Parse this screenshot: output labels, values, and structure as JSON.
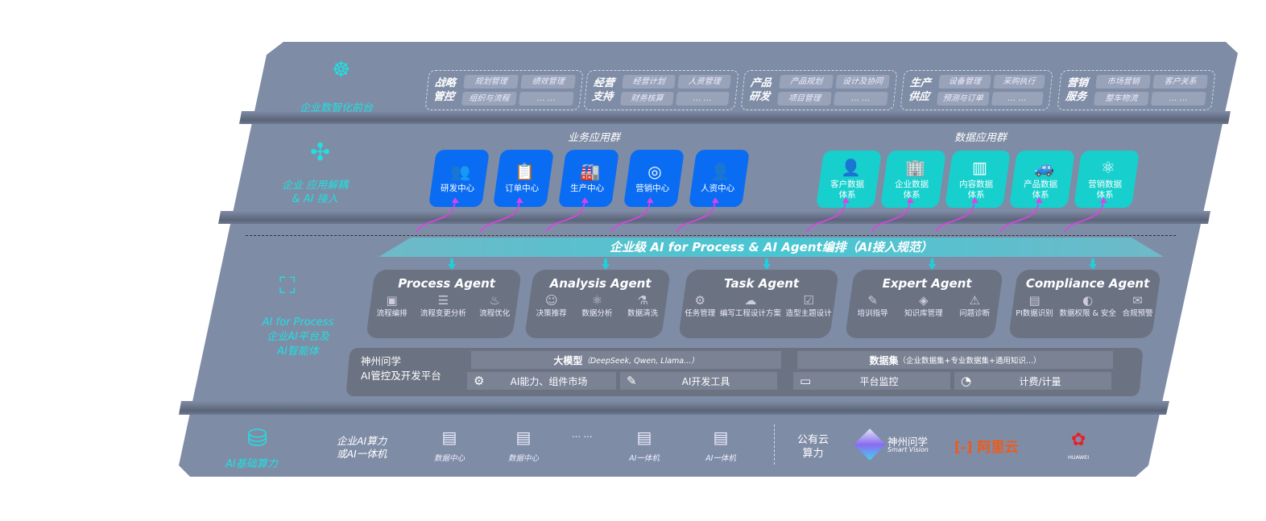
{
  "colors": {
    "panel": "#7f8ca6",
    "accent_teal": "#1fe0e0",
    "business_blue": "#0a6cf2",
    "data_cyan": "#17cfcd",
    "arrow_magenta": "#e040e8"
  },
  "layer1": {
    "label": "企业数智化前台",
    "icon": "brain-icon",
    "groups": [
      {
        "title": [
          "战略",
          "管控"
        ],
        "items": [
          "规划管理",
          "绩效管理",
          "组织与流程",
          "… …"
        ]
      },
      {
        "title": [
          "经营",
          "支持"
        ],
        "items": [
          "经营计划",
          "人资管理",
          "财务核算",
          "… …"
        ]
      },
      {
        "title": [
          "产品",
          "研发"
        ],
        "items": [
          "产品规划",
          "设计及协同",
          "项目管理",
          "… …"
        ]
      },
      {
        "title": [
          "生产",
          "供应"
        ],
        "items": [
          "设备管理",
          "采购执行",
          "预测与订单",
          "… …"
        ]
      },
      {
        "title": [
          "营销",
          "服务"
        ],
        "items": [
          "市场营销",
          "客户关系",
          "整车物流",
          "… …"
        ]
      }
    ]
  },
  "layer2": {
    "label": [
      "企业 应用解耦",
      "& AI 接入"
    ],
    "icon": "molecule-icon",
    "business_title": "业务应用群",
    "business": [
      {
        "label": "研发中心",
        "icon": "team-icon",
        "glyph": "👥"
      },
      {
        "label": "订单中心",
        "icon": "clipboard-icon",
        "glyph": "📋"
      },
      {
        "label": "生产中心",
        "icon": "factory-icon",
        "glyph": "🏭"
      },
      {
        "label": "营销中心",
        "icon": "target-icon",
        "glyph": "◎"
      },
      {
        "label": "人资中心",
        "icon": "person-icon",
        "glyph": "👤"
      }
    ],
    "data_title": "数据应用群",
    "data_apps": [
      {
        "label": [
          "客户数据",
          "体系"
        ],
        "icon": "user-icon",
        "glyph": "👤"
      },
      {
        "label": [
          "企业数据",
          "体系"
        ],
        "icon": "building-icon",
        "glyph": "🏢"
      },
      {
        "label": [
          "内容数据",
          "体系"
        ],
        "icon": "books-icon",
        "glyph": "▥"
      },
      {
        "label": [
          "产品数据",
          "体系"
        ],
        "icon": "car-icon",
        "glyph": "🚙"
      },
      {
        "label": [
          "营销数据",
          "体系"
        ],
        "icon": "atom-icon",
        "glyph": "⚛"
      }
    ]
  },
  "banner": "企业级 AI for Process & AI Agent编排（AI接入规范）",
  "layer3": {
    "label": [
      "AI for Process",
      "企业AI平台及",
      "AI智能体"
    ],
    "icon": "face-scan-icon",
    "agents": [
      {
        "name": "Process Agent",
        "items": [
          {
            "label": "流程编排",
            "glyph": "▣"
          },
          {
            "label": "流程变更分析",
            "glyph": "☰"
          },
          {
            "label": "流程优化",
            "glyph": "♨"
          }
        ]
      },
      {
        "name": "Analysis Agent",
        "items": [
          {
            "label": "决策推荐",
            "glyph": "☺"
          },
          {
            "label": "数据分析",
            "glyph": "⚛"
          },
          {
            "label": "数据清洗",
            "glyph": "⚗"
          }
        ]
      },
      {
        "name": "Task Agent",
        "items": [
          {
            "label": "任务管理",
            "glyph": "⚙"
          },
          {
            "label": "编写工程设计方案",
            "glyph": "☁"
          },
          {
            "label": "造型主题设计",
            "glyph": "☑"
          }
        ]
      },
      {
        "name": "Expert Agent",
        "items": [
          {
            "label": "培训指导",
            "glyph": "✎"
          },
          {
            "label": "知识库管理",
            "glyph": "◈"
          },
          {
            "label": "问题诊断",
            "glyph": "⚠"
          }
        ]
      },
      {
        "name": "Compliance Agent",
        "items": [
          {
            "label": "PI数据识别",
            "glyph": "▤"
          },
          {
            "label": "数据权限 & 安全",
            "glyph": "◐"
          },
          {
            "label": "合规预警",
            "glyph": "✉"
          }
        ]
      }
    ],
    "platform": {
      "title": [
        "神州问学",
        "AI管控及开发平台"
      ],
      "llm": "大模型",
      "llm_note": "（DeepSeek, Qwen, Llama...）",
      "dataset": "数据集",
      "dataset_note": "（企业数据集+专业数据集+通用知识...）",
      "tools": [
        {
          "label": "AI能力、组件市场",
          "icon": "market-icon",
          "glyph": "⚙"
        },
        {
          "label": "AI开发工具",
          "icon": "dev-tool-icon",
          "glyph": "✎"
        },
        {
          "label": "平台监控",
          "icon": "monitor-icon",
          "glyph": "▭"
        },
        {
          "label": "计费/计量",
          "icon": "gauge-icon",
          "glyph": "◔"
        }
      ]
    }
  },
  "layer4": {
    "label": "AI基础算力",
    "icon": "database-icon",
    "enterprise": [
      "企业AI算力",
      "或AI一体机"
    ],
    "servers": [
      "数据中心",
      "数据中心",
      "AI一体机",
      "AI一体机"
    ],
    "ellipsis": "… …",
    "public": [
      "公有云",
      "算力"
    ],
    "vendors": {
      "shenzhou": "神州问学",
      "shenzhou_en": "Smart Vision",
      "aliyun": "阿里云",
      "huawei": "HUAWEI"
    }
  }
}
